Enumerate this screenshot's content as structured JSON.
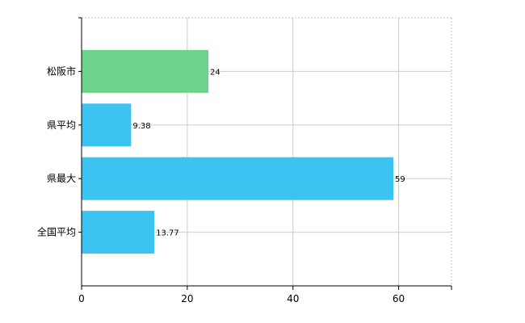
{
  "chart_data": {
    "type": "bar",
    "orientation": "horizontal",
    "categories": [
      "松阪市",
      "県平均",
      "県最大",
      "全国平均"
    ],
    "values": [
      24,
      9.38,
      59,
      13.77
    ],
    "value_labels": [
      "24",
      "9.38",
      "59",
      "13.77"
    ],
    "bar_colors": [
      "#6dd38a",
      "#3cc3f2",
      "#3cc3f2",
      "#3cc3f2"
    ],
    "xlim": [
      0,
      70
    ],
    "xticks": [
      0,
      20,
      40,
      60
    ],
    "xtick_labels": [
      "0",
      "20",
      "40",
      "60"
    ],
    "grid": true,
    "legend": "none"
  }
}
